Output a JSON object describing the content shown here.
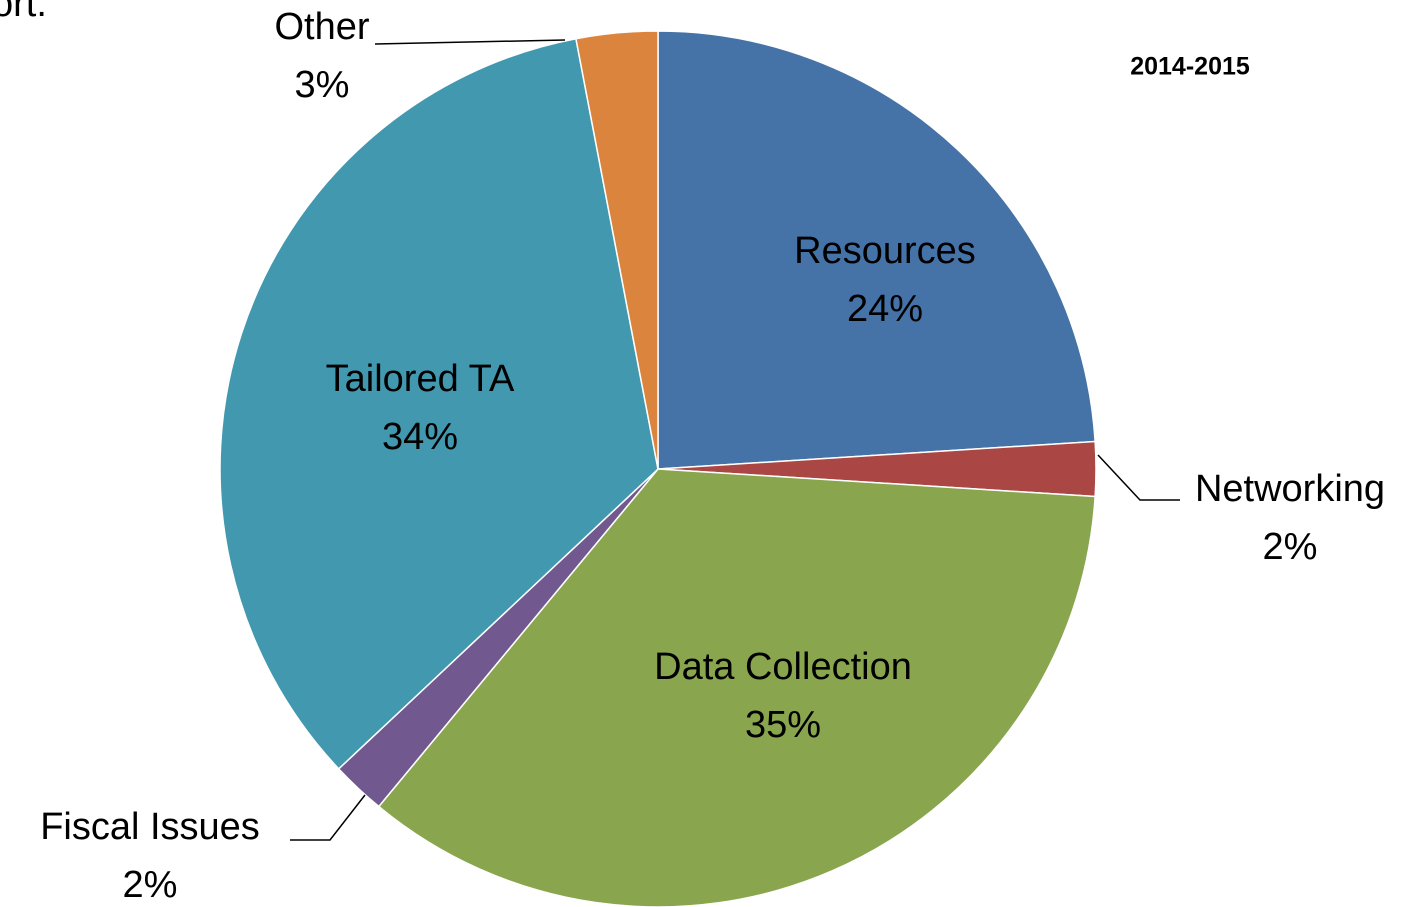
{
  "chart_data": {
    "type": "pie",
    "title": "2014-2015",
    "annotations": [
      "ort."
    ],
    "categories": [
      "Resources",
      "Networking",
      "Data Collection",
      "Fiscal Issues",
      "Tailored TA",
      "Other"
    ],
    "values": [
      24,
      2,
      35,
      2,
      34,
      3
    ],
    "value_labels": [
      "24%",
      "2%",
      "35%",
      "2%",
      "34%",
      "3%"
    ],
    "colors": [
      "#4572a7",
      "#aa4643",
      "#89a54e",
      "#71588f",
      "#4198af",
      "#db843d"
    ]
  }
}
